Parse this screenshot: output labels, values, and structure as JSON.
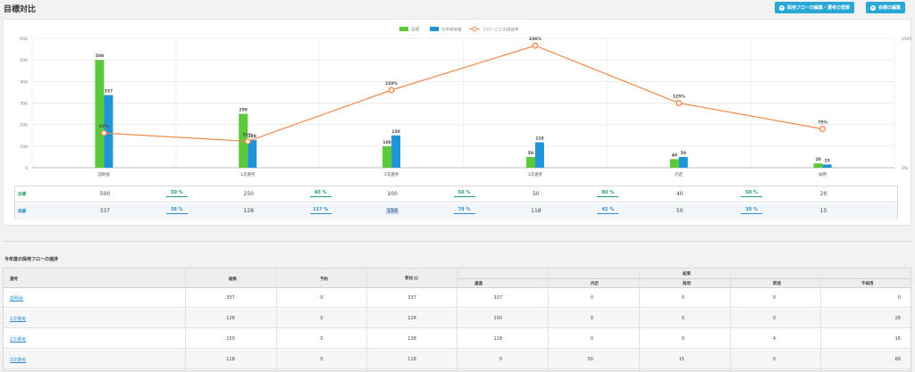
{
  "header": {
    "title": "目標対比",
    "btn_flow": "採用フローの編集・選考の登録",
    "btn_target": "目標の編集"
  },
  "chart_data": {
    "type": "bar",
    "categories": [
      "説明会",
      "1次選考",
      "2次選考",
      "3次選考",
      "内定",
      "採用"
    ],
    "series": [
      {
        "name": "目標",
        "color": "#5cc93b",
        "values": [
          500,
          250,
          100,
          50,
          40,
          20
        ]
      },
      {
        "name": "今年度実績",
        "color": "#1f95d6",
        "values": [
          337,
          128,
          150,
          118,
          50,
          15
        ]
      }
    ],
    "line_series": {
      "name": "フローごとの達成率",
      "color": "#ef8a4c",
      "values": [
        67,
        51,
        150,
        236,
        125,
        75
      ],
      "labels": [
        "67%",
        "51%",
        "150%",
        "236%",
        "125%",
        "75%"
      ]
    },
    "y_ticks": [
      "0",
      "100",
      "200",
      "300",
      "400",
      "500",
      "600"
    ],
    "ylim": [
      0,
      600
    ],
    "y2_ticks": [
      "0%",
      "250%"
    ],
    "y2lim": [
      0,
      250
    ],
    "legend": [
      "目標",
      "今年度実績",
      "フローごとの達成率"
    ]
  },
  "target_table": {
    "row1": {
      "label": "目標",
      "values": [
        "500",
        "250",
        "100",
        "50",
        "40",
        "20"
      ],
      "rates": [
        "50 %",
        "40 %",
        "50 %",
        "80 %",
        "50 %"
      ]
    },
    "row2": {
      "label": "実績",
      "values": [
        "337",
        "128",
        "150",
        "118",
        "50",
        "15"
      ],
      "rates": [
        "38 %",
        "117 %",
        "79 %",
        "42 %",
        "30 %"
      ]
    }
  },
  "flow_section": {
    "title": "今年度の採用フローの進捗",
    "headers": {
      "stage": "選考",
      "applicants": "総数",
      "planned": "予約",
      "participated": "参加",
      "result": "結果",
      "pass": "通過",
      "offer": "内定",
      "hired": "採用",
      "declined": "辞退",
      "rejected": "不採用"
    },
    "rows": [
      {
        "name": "説明会",
        "applicants": "337",
        "planned": "0",
        "participated": "337",
        "pass": "337",
        "offer": "0",
        "hired": "0",
        "declined": "0",
        "rejected": "0"
      },
      {
        "name": "1次選考",
        "applicants": "128",
        "planned": "0",
        "participated": "128",
        "pass": "100",
        "offer": "0",
        "hired": "0",
        "declined": "0",
        "rejected": "28"
      },
      {
        "name": "2次選考",
        "applicants": "150",
        "planned": "0",
        "participated": "138",
        "pass": "118",
        "offer": "0",
        "hired": "0",
        "declined": "4",
        "rejected": "16"
      },
      {
        "name": "3次選考",
        "applicants": "118",
        "planned": "0",
        "participated": "118",
        "pass": "0",
        "offer": "50",
        "hired": "15",
        "declined": "0",
        "rejected": "68"
      }
    ]
  }
}
